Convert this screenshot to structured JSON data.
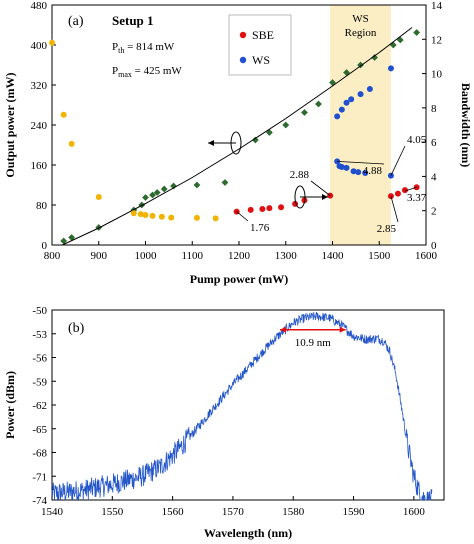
{
  "chart_data": [
    {
      "panel_label": "(a)",
      "type": "scatter",
      "title": "Setup 1",
      "xlabel": "Pump power (mW)",
      "ylabel_left": "Output power (mW)",
      "ylabel_right": "Bandwidth (nm)",
      "xlim": [
        800,
        1600
      ],
      "ylim_left": [
        0,
        480
      ],
      "ylim_right": [
        0,
        14
      ],
      "x_ticks": [
        800,
        900,
        1000,
        1100,
        1200,
        1300,
        1400,
        1500,
        1600
      ],
      "y_ticks_left": [
        0,
        80,
        160,
        240,
        320,
        400,
        480
      ],
      "y_ticks_right": [
        0,
        2,
        4,
        6,
        8,
        10,
        12,
        14
      ],
      "params": [
        {
          "sym": "P",
          "sub": "th",
          "value": " = 814 mW"
        },
        {
          "sym": "P",
          "sub": "max",
          "value": " = 425 mW"
        }
      ],
      "legend": {
        "position": "top-center",
        "entries": [
          "SBE",
          "WS"
        ]
      },
      "region": {
        "label_line1": "WS",
        "label_line2": "Region",
        "x_start": 1395,
        "x_end": 1525,
        "color": "#fbeec4"
      },
      "series": [
        {
          "name": "Output power",
          "axis": "left",
          "marker": "diamond",
          "color": "#2e6b2e",
          "x": [
            825,
            842,
            900,
            975,
            992,
            1000,
            1015,
            1025,
            1040,
            1060,
            1110,
            1170,
            1235,
            1265,
            1300,
            1340,
            1370,
            1400,
            1430,
            1460,
            1490,
            1530,
            1545,
            1580
          ],
          "y": [
            8,
            15,
            35,
            70,
            80,
            95,
            100,
            105,
            112,
            118,
            120,
            125,
            210,
            225,
            240,
            265,
            282,
            325,
            345,
            360,
            375,
            400,
            410,
            425
          ]
        },
        {
          "name": "Fit",
          "axis": "left",
          "type": "line",
          "color": "#000000",
          "x": [
            822,
            900,
            1000,
            1100,
            1200,
            1300,
            1400,
            1500,
            1570
          ],
          "y": [
            0,
            34,
            83,
            135,
            192,
            253,
            318,
            385,
            435
          ]
        },
        {
          "name": "Bandwidth (Setup 1)",
          "axis": "right",
          "marker": "circle",
          "color": "#f0b400",
          "x": [
            800,
            825,
            842,
            900,
            975,
            990,
            1000,
            1015,
            1035,
            1055,
            1110,
            1150
          ],
          "y": [
            11.8,
            7.6,
            5.9,
            2.8,
            1.85,
            1.8,
            1.75,
            1.7,
            1.65,
            1.6,
            1.58,
            1.55
          ]
        },
        {
          "name": "SBE",
          "axis": "right",
          "marker": "circle",
          "color": "#e01010",
          "x": [
            1195,
            1225,
            1250,
            1265,
            1290,
            1320,
            1340,
            1395,
            1525,
            1540,
            1555,
            1580
          ],
          "y": [
            1.95,
            2.05,
            2.1,
            2.15,
            2.2,
            2.4,
            2.6,
            2.88,
            2.85,
            3.0,
            3.2,
            3.37
          ]
        },
        {
          "name": "WS",
          "axis": "right",
          "marker": "circle",
          "color": "#2050d0",
          "x": [
            1410,
            1415,
            1420,
            1430,
            1445,
            1455,
            1470,
            1525,
            1410,
            1420,
            1430,
            1440,
            1460,
            1480,
            1525
          ],
          "y": [
            4.88,
            4.6,
            4.55,
            4.5,
            4.3,
            4.25,
            4.2,
            4.05,
            7.5,
            7.9,
            8.3,
            8.5,
            8.8,
            9.1,
            10.3
          ]
        }
      ],
      "annotations": [
        {
          "text": "1.76"
        },
        {
          "text": "2.88"
        },
        {
          "text": "4.88"
        },
        {
          "text": "4.05"
        },
        {
          "text": "3.37"
        },
        {
          "text": "2.85"
        }
      ]
    },
    {
      "panel_label": "(b)",
      "type": "line",
      "xlabel": "Wavelength (nm)",
      "ylabel": "Power (dBm)",
      "xlim": [
        1540,
        1605
      ],
      "ylim": [
        -74,
        -50
      ],
      "x_ticks": [
        1540,
        1550,
        1560,
        1570,
        1580,
        1590,
        1600
      ],
      "y_ticks": [
        -50,
        -53,
        -56,
        -59,
        -62,
        -65,
        -68,
        -71,
        -74
      ],
      "color": "#2456c8",
      "spectrum": {
        "x": [
          1540,
          1545,
          1550,
          1555,
          1558,
          1561,
          1564,
          1567,
          1570,
          1573,
          1575,
          1577,
          1579,
          1580,
          1582,
          1584,
          1586,
          1588,
          1589,
          1590,
          1592,
          1594,
          1595,
          1596,
          1597,
          1598,
          1599,
          1600,
          1601,
          1602,
          1603
        ],
        "y": [
          -73.2,
          -72.8,
          -72.0,
          -71.0,
          -69.8,
          -67.6,
          -65.0,
          -62.2,
          -59.4,
          -56.9,
          -55.2,
          -53.6,
          -52.3,
          -51.6,
          -51.0,
          -50.8,
          -51.0,
          -51.9,
          -52.6,
          -53.3,
          -53.7,
          -53.6,
          -53.9,
          -55.2,
          -58.0,
          -62.5,
          -67.2,
          -71.0,
          -73.2,
          -74.0,
          -74.0
        ]
      },
      "fwhm_annotation": {
        "text": "10.9 nm",
        "x_start": 1577.8,
        "x_end": 1588.7,
        "y": -52.5,
        "color": "#e01010"
      }
    }
  ]
}
